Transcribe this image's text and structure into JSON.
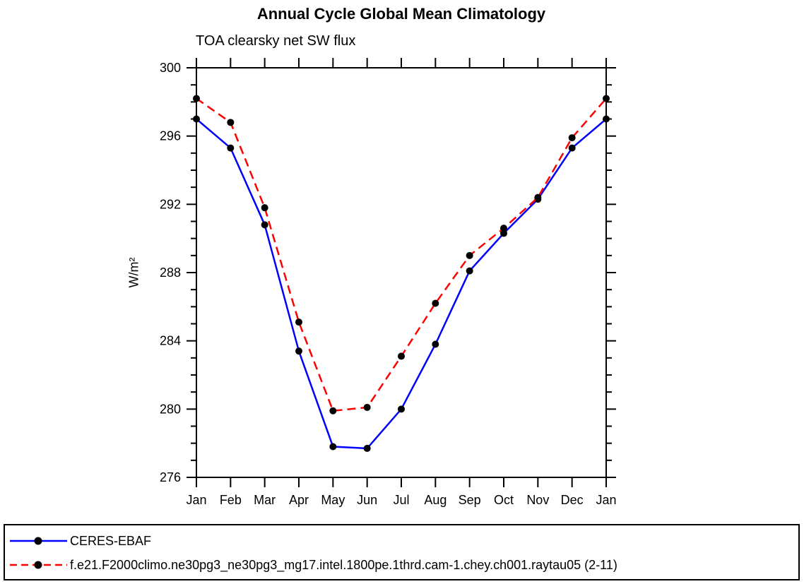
{
  "chart_data": {
    "type": "line",
    "title": "Annual Cycle Global Mean Climatology",
    "subtitle": "TOA clearsky net SW flux",
    "ylabel": "W/m²",
    "xlabel": "",
    "categories": [
      "Jan",
      "Feb",
      "Mar",
      "Apr",
      "May",
      "Jun",
      "Jul",
      "Aug",
      "Sep",
      "Oct",
      "Nov",
      "Dec",
      "Jan"
    ],
    "ylim": [
      276,
      300
    ],
    "ytick_major": [
      276,
      280,
      284,
      288,
      292,
      296,
      300
    ],
    "ytick_minor_step": 1,
    "grid": false,
    "legend_position": "bottom-box",
    "series": [
      {
        "name": "CERES-EBAF",
        "color": "#0000ff",
        "line_style": "solid",
        "marker": "filled-circle",
        "marker_color": "#000000",
        "values": [
          297.0,
          295.3,
          290.8,
          283.4,
          277.8,
          277.7,
          280.0,
          283.8,
          288.1,
          290.3,
          292.3,
          295.3,
          297.0
        ]
      },
      {
        "name": "f.e21.F2000climo.ne30pg3_ne30pg3_mg17.intel.1800pe.1thrd.cam-1.chey.ch001.raytau05 (2-11)",
        "color": "#ff0000",
        "line_style": "dashed",
        "marker": "filled-circle",
        "marker_color": "#000000",
        "values": [
          298.2,
          296.8,
          291.8,
          285.1,
          279.9,
          280.1,
          283.1,
          286.2,
          289.0,
          290.6,
          292.4,
          295.9,
          298.2
        ]
      }
    ]
  },
  "colors": {
    "axis": "#000000",
    "background": "#ffffff",
    "series_1": "#0000ff",
    "series_2": "#ff0000",
    "marker": "#000000"
  }
}
